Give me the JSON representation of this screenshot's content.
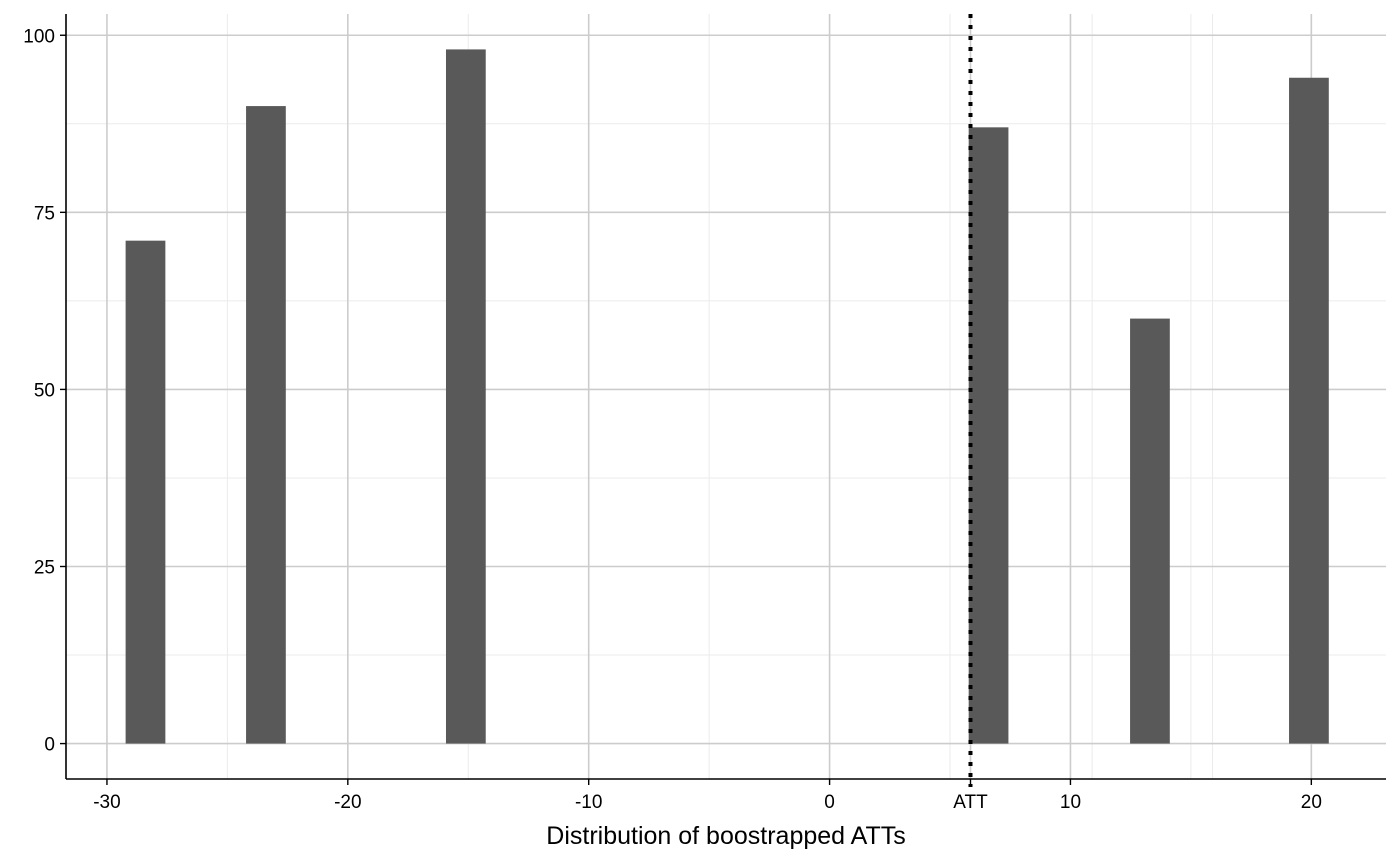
{
  "chart_data": {
    "type": "bar",
    "title": "",
    "xlabel": "Distribution of boostrapped ATTs",
    "ylabel": "",
    "xlim": [
      -31.7,
      23.1
    ],
    "ylim": [
      -5,
      103
    ],
    "grid": true,
    "bar_width": 1.65,
    "series": [
      {
        "x": [
          -28.4,
          -23.4,
          -15.1,
          6.6,
          13.3,
          19.9
        ],
        "values": [
          71,
          90,
          98,
          87,
          60,
          94
        ]
      }
    ],
    "x_ticks": [
      {
        "value": -30,
        "label": "-30"
      },
      {
        "value": -20,
        "label": "-20"
      },
      {
        "value": -10,
        "label": "-10"
      },
      {
        "value": 0,
        "label": "0"
      },
      {
        "value": 5.85,
        "label": "ATT"
      },
      {
        "value": 10,
        "label": "10"
      },
      {
        "value": 20,
        "label": "20"
      }
    ],
    "y_ticks": [
      {
        "value": 0,
        "label": "0"
      },
      {
        "value": 25,
        "label": "25"
      },
      {
        "value": 50,
        "label": "50"
      },
      {
        "value": 75,
        "label": "75"
      },
      {
        "value": 100,
        "label": "100"
      }
    ],
    "x_minor_grid": [
      -25,
      -15,
      -5,
      5,
      10.9,
      15,
      15.9
    ],
    "y_minor_grid": [
      12.5,
      37.5,
      62.5,
      87.5
    ],
    "reference_line": {
      "x": 5.85,
      "style": "dotted",
      "label": "ATT"
    },
    "colors": {
      "bar": "#595959",
      "major_grid": "#cccccc",
      "minor_grid": "#ebebeb",
      "axis": "#000000",
      "reference_line": "#000000"
    }
  }
}
